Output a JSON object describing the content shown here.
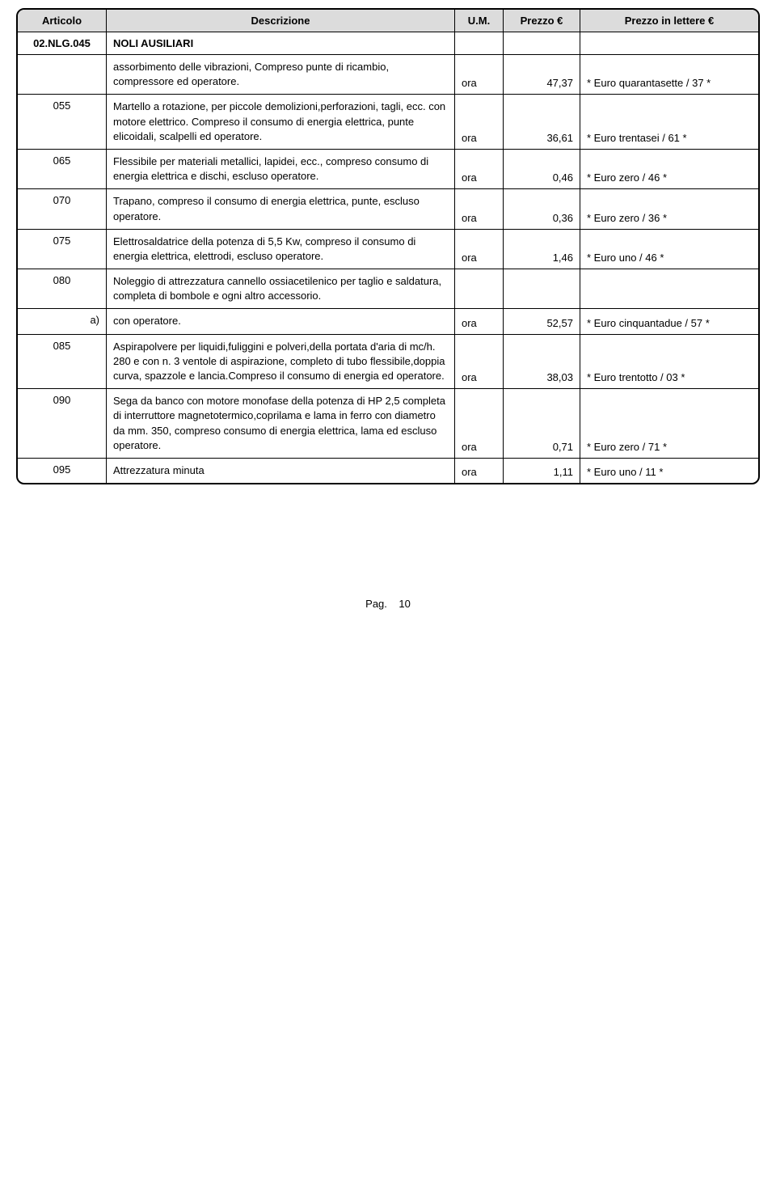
{
  "header": {
    "articolo": "Articolo",
    "descrizione": "Descrizione",
    "um": "U.M.",
    "prezzo": "Prezzo €",
    "lettere": "Prezzo in lettere €"
  },
  "title": {
    "code": "02.NLG.045",
    "name": "NOLI AUSILIARI"
  },
  "rows": [
    {
      "art": "",
      "desc": "assorbimento delle vibrazioni, Compreso punte di ricambio, compressore ed operatore.",
      "um": "ora",
      "prezzo": "47,37",
      "lettere": "* Euro quarantasette / 37 *"
    },
    {
      "art": "055",
      "desc": "Martello a rotazione, per piccole demolizioni,perforazioni, tagli, ecc. con motore elettrico. Compreso il consumo di energia elettrica, punte elicoidali, scalpelli ed operatore.",
      "um": "ora",
      "prezzo": "36,61",
      "lettere": "* Euro trentasei / 61 *"
    },
    {
      "art": "065",
      "desc": "Flessibile per materiali metallici, lapidei, ecc., compreso consumo di energia elettrica e dischi, escluso operatore.",
      "um": "ora",
      "prezzo": "0,46",
      "lettere": "* Euro zero / 46 *"
    },
    {
      "art": "070",
      "desc": "Trapano, compreso il consumo di energia elettrica, punte, escluso operatore.",
      "um": "ora",
      "prezzo": "0,36",
      "lettere": "* Euro zero / 36 *"
    },
    {
      "art": "075",
      "desc": "Elettrosaldatrice della potenza di 5,5 Kw, compreso il consumo di energia elettrica, elettrodi, escluso operatore.",
      "um": "ora",
      "prezzo": "1,46",
      "lettere": "* Euro uno / 46 *"
    },
    {
      "art": "080",
      "desc": "Noleggio di attrezzatura cannello ossiacetilenico per taglio e saldatura, completa di bombole e ogni altro accessorio.",
      "um": "",
      "prezzo": "",
      "lettere": ""
    },
    {
      "art": "a)",
      "art_align": "right",
      "desc": "con operatore.",
      "um": "ora",
      "prezzo": "52,57",
      "lettere": "* Euro cinquantadue / 57 *"
    },
    {
      "art": "085",
      "desc": "Aspirapolvere per liquidi,fuliggini e polveri,della portata d'aria di mc/h. 280 e con n. 3 ventole di aspirazione, completo di tubo flessibile,doppia curva, spazzole e lancia.Compreso il consumo di energia ed operatore.",
      "um": "ora",
      "prezzo": "38,03",
      "lettere": "* Euro trentotto / 03 *"
    },
    {
      "art": "090",
      "desc": "Sega da banco con motore monofase della potenza di HP 2,5 completa di interruttore magnetotermico,coprilama e lama in ferro con diametro da mm. 350, compreso consumo di energia elettrica, lama ed escluso operatore.",
      "um": "ora",
      "prezzo": "0,71",
      "lettere": "* Euro zero / 71 *"
    },
    {
      "art": "095",
      "desc": "Attrezzatura minuta",
      "um": "ora",
      "prezzo": "1,11",
      "lettere": "* Euro uno / 11 *"
    }
  ],
  "footer": {
    "label": "Pag.",
    "num": "10"
  }
}
